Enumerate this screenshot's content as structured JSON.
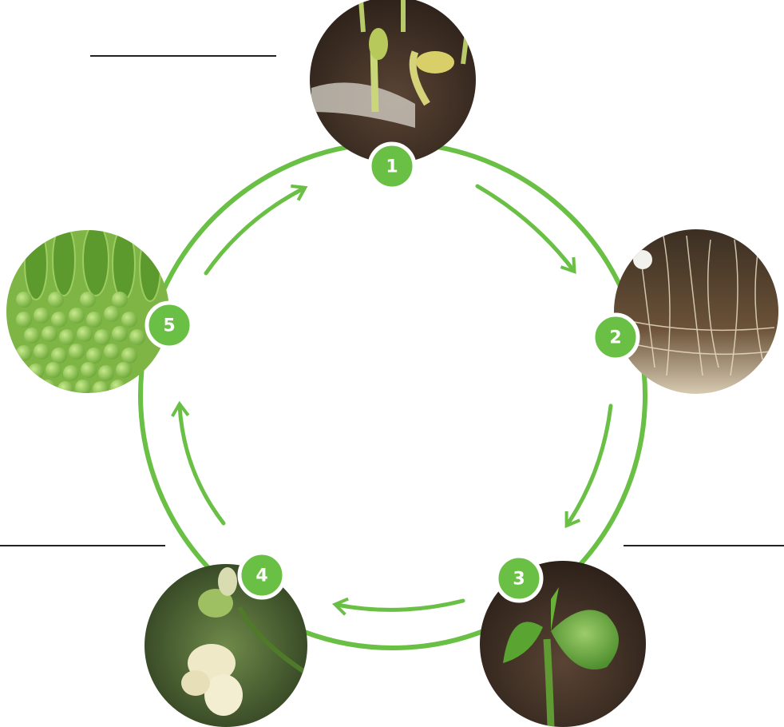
{
  "stages": [
    {
      "number": "1"
    },
    {
      "number": "2"
    },
    {
      "number": "3"
    },
    {
      "number": "4"
    },
    {
      "number": "5"
    }
  ]
}
